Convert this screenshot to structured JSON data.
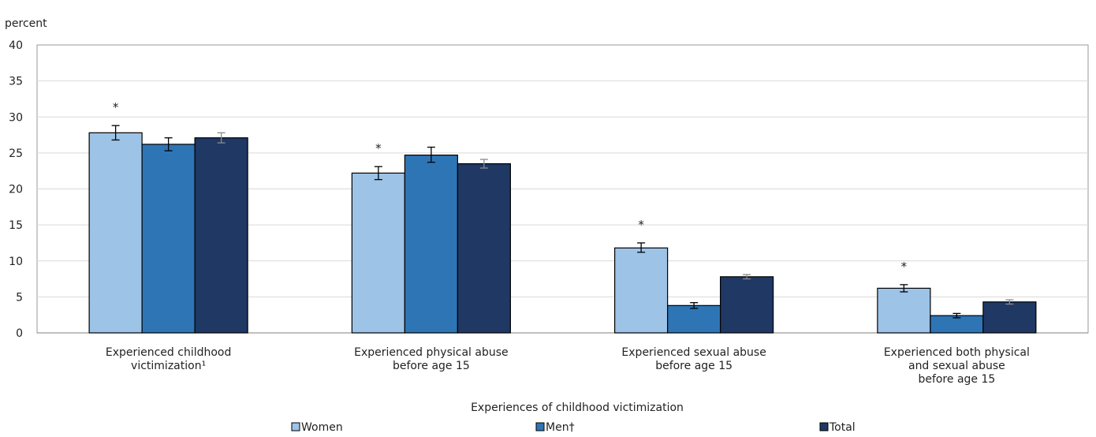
{
  "chart_data": {
    "type": "bar",
    "title": "",
    "ylabel": "percent",
    "xlabel": "Experiences of childhood victimization",
    "ylim": [
      0,
      40
    ],
    "yticks": [
      0,
      5,
      10,
      15,
      20,
      25,
      30,
      35,
      40
    ],
    "grid": true,
    "legend_position": "bottom",
    "categories": [
      [
        "Experienced childhood",
        "victimization¹"
      ],
      [
        "Experienced physical abuse",
        "before age 15"
      ],
      [
        "Experienced sexual abuse",
        "before age 15"
      ],
      [
        "Experienced both physical",
        "and sexual abuse",
        "before age 15"
      ]
    ],
    "series": [
      {
        "name": "Women",
        "color": "#9dc3e6",
        "values": [
          27.8,
          22.2,
          11.8,
          6.2
        ],
        "error_low": [
          26.8,
          21.3,
          11.2,
          5.7
        ],
        "error_high": [
          28.8,
          23.1,
          12.5,
          6.7
        ],
        "significance": [
          "*",
          "*",
          "*",
          "*"
        ]
      },
      {
        "name": "Men†",
        "color": "#2e75b6",
        "values": [
          26.2,
          24.7,
          3.8,
          2.4
        ],
        "error_low": [
          25.3,
          23.7,
          3.4,
          2.1
        ],
        "error_high": [
          27.1,
          25.8,
          4.2,
          2.7
        ],
        "significance": [
          "",
          "",
          "",
          ""
        ]
      },
      {
        "name": "Total",
        "color": "#1f3864",
        "values": [
          27.1,
          23.5,
          7.8,
          4.3
        ],
        "error_low": [
          26.4,
          22.9,
          7.5,
          4.0
        ],
        "error_high": [
          27.8,
          24.1,
          8.1,
          4.6
        ],
        "significance": [
          "",
          "",
          "",
          ""
        ]
      }
    ]
  }
}
